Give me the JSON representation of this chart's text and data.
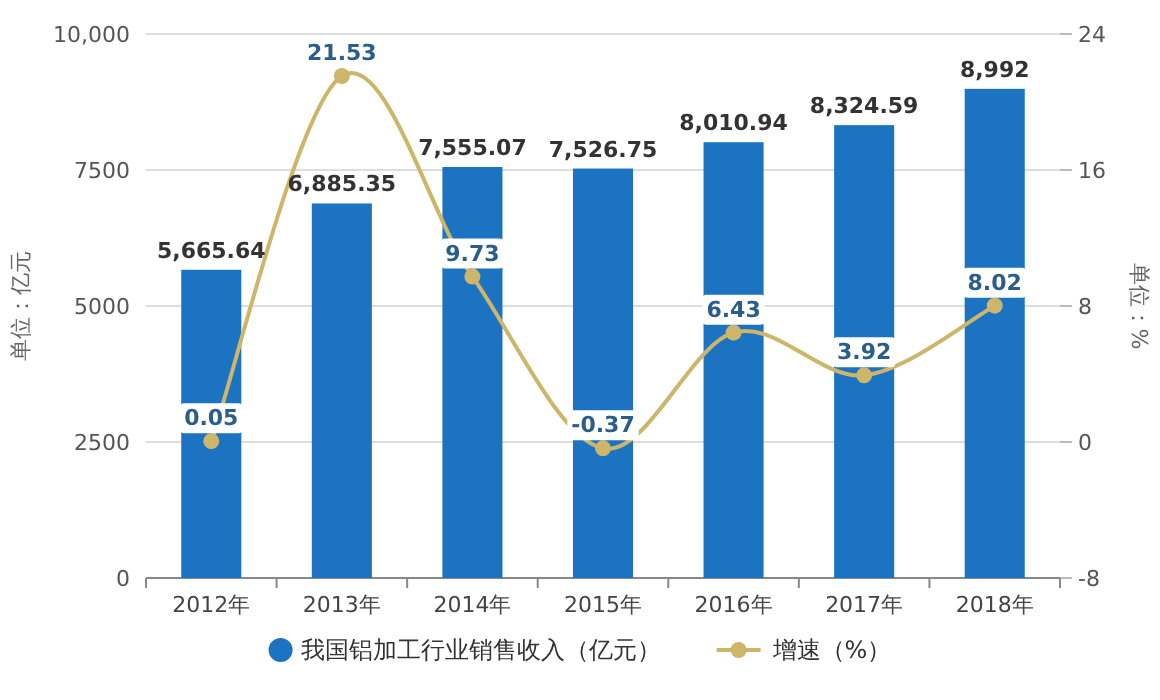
{
  "chart_data": {
    "type": "bar",
    "categories": [
      "2012年",
      "2013年",
      "2014年",
      "2015年",
      "2016年",
      "2017年",
      "2018年"
    ],
    "series": [
      {
        "name": "我国铝加工行业销售收入（亿元）",
        "color": "#1b73c2",
        "values": [
          5665.64,
          6885.35,
          7555.07,
          7526.75,
          8010.94,
          8324.59,
          8992
        ],
        "value_labels": [
          "5,665.64",
          "6,885.35",
          "7,555.07",
          "7,526.75",
          "8,010.94",
          "8,324.59",
          "8,992"
        ]
      },
      {
        "type": "line",
        "axis": "y2",
        "name": "增速（%）",
        "color": "#cdb56a",
        "marker": "circle",
        "values": [
          0.05,
          21.53,
          9.73,
          -0.37,
          6.43,
          3.92,
          8.02
        ],
        "value_labels": [
          "0.05",
          "21.53",
          "9.73",
          "-0.37",
          "6.43",
          "3.92",
          "8.02"
        ]
      }
    ],
    "ylim": [
      0,
      10000
    ],
    "yticks": [
      0,
      2500,
      5000,
      7500,
      {
        "value": 10000,
        "label": "10,000"
      }
    ],
    "y2lim": [
      -8,
      24
    ],
    "y2ticks": [
      -8,
      0,
      8,
      16,
      24
    ],
    "ylabel": "单位：亿元",
    "y2label": "单位：%",
    "grid": "y",
    "legend": "bottom"
  }
}
